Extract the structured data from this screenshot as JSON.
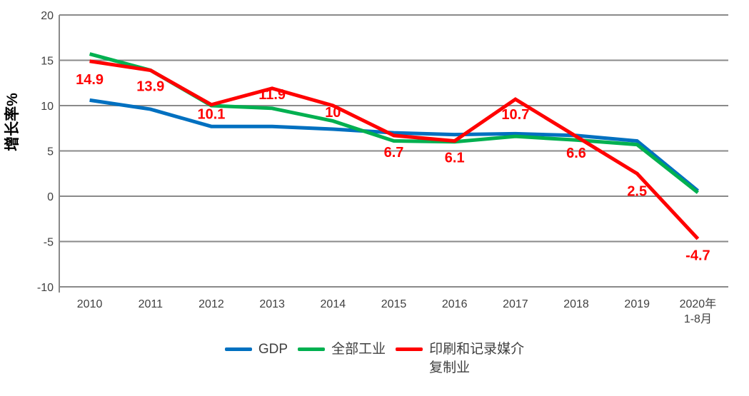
{
  "chart_data": {
    "type": "line",
    "title": "",
    "ylabel": "增长率%",
    "categories": [
      [
        "2010"
      ],
      [
        "2011"
      ],
      [
        "2012"
      ],
      [
        "2013"
      ],
      [
        "2014"
      ],
      [
        "2015"
      ],
      [
        "2016"
      ],
      [
        "2017"
      ],
      [
        "2018"
      ],
      [
        "2019"
      ],
      [
        "2020年",
        "1-8月"
      ]
    ],
    "ylim": [
      -10,
      20
    ],
    "yticks": [
      20,
      15,
      10,
      5,
      0,
      -5,
      -10
    ],
    "grid": true,
    "legend_position": "bottom",
    "series": [
      {
        "name": "GDP",
        "slug": "gdp",
        "legend_lines": [
          "GDP"
        ],
        "color": "#0070C0",
        "values": [
          10.6,
          9.6,
          7.7,
          7.7,
          7.4,
          7.0,
          6.8,
          6.9,
          6.7,
          6.1,
          0.6
        ]
      },
      {
        "name": "全部工业",
        "slug": "all-industry",
        "legend_lines": [
          "全部工业"
        ],
        "color": "#00B050",
        "values": [
          15.7,
          13.9,
          10.0,
          9.7,
          8.3,
          6.1,
          6.0,
          6.6,
          6.2,
          5.7,
          0.4
        ]
      },
      {
        "name": "印刷和记录媒介复制业",
        "slug": "printing-media",
        "legend_lines": [
          "印刷和记录媒介",
          "复制业"
        ],
        "color": "#FF0000",
        "values": [
          14.9,
          13.9,
          10.1,
          11.9,
          10,
          6.7,
          6.1,
          10.7,
          6.6,
          2.5,
          -4.7
        ],
        "data_labels": [
          "14.9",
          "13.9",
          "10.1",
          "11.9",
          "10",
          "6.7",
          "6.1",
          "10.7",
          "6.6",
          "2.5",
          "-4.7"
        ],
        "label_dy": [
          32,
          29,
          20,
          15,
          16,
          30,
          30,
          28,
          30,
          31,
          30
        ]
      }
    ]
  },
  "colors": {
    "grid": "#8a8a8a",
    "axis": "#8a8a8a",
    "tick_text": "#404040",
    "data_label": "#FF0000",
    "background": "#FFFFFF"
  }
}
